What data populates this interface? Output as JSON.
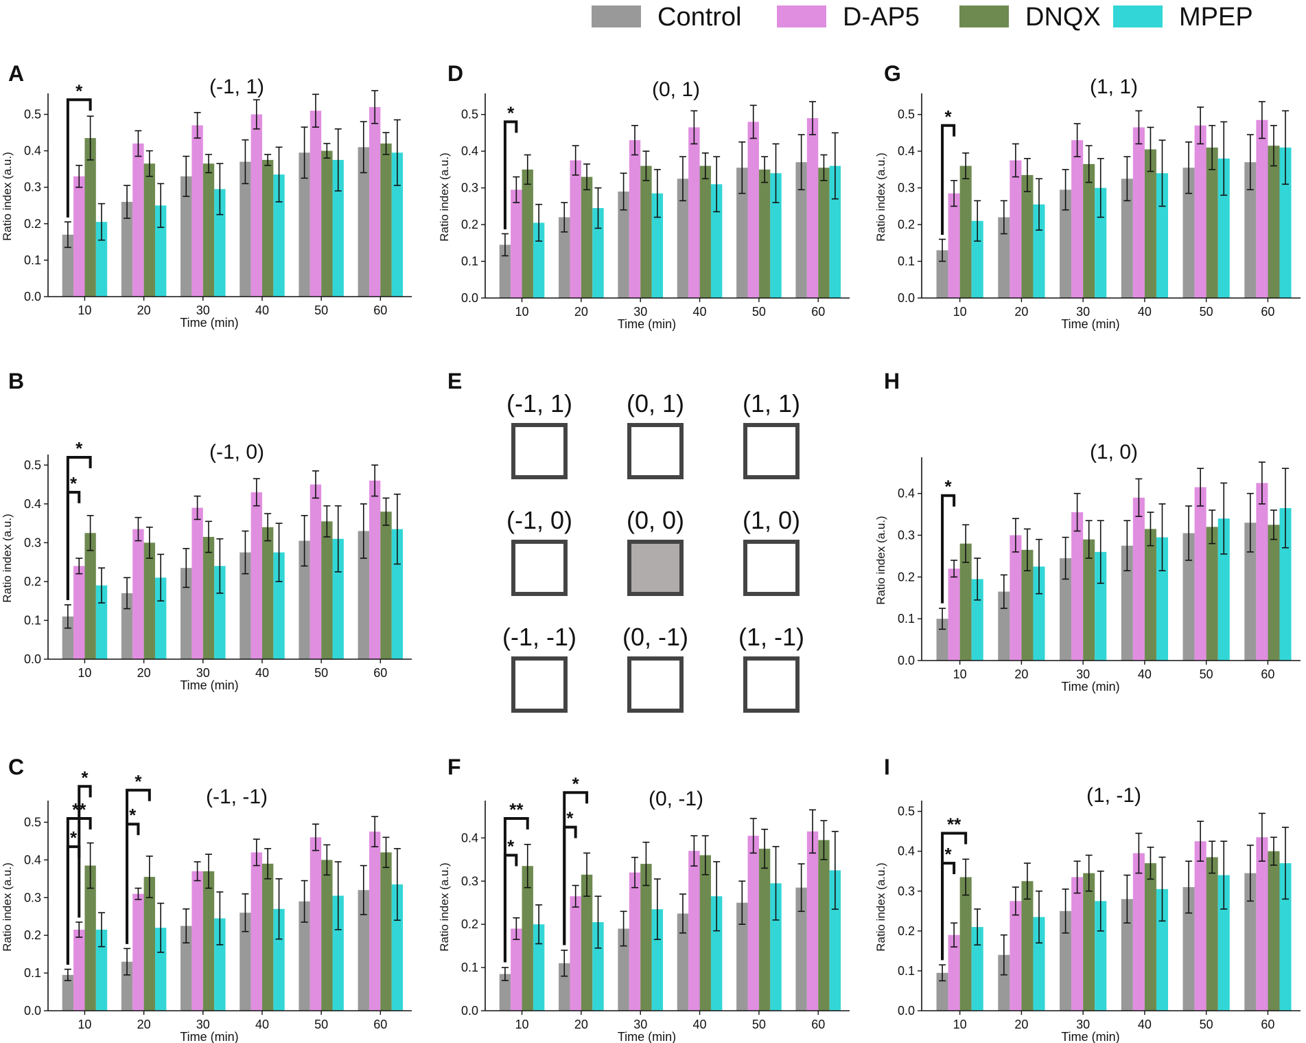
{
  "legend": [
    {
      "name": "Control",
      "color": "#999999"
    },
    {
      "name": "D-AP5",
      "color": "#e08ee0"
    },
    {
      "name": "DNQX",
      "color": "#6e8a50"
    },
    {
      "name": "MPEP",
      "color": "#33d6d6"
    }
  ],
  "grid_panel": {
    "letter": "E",
    "cells": [
      "(-1, 1)",
      "(0, 1)",
      "(1, 1)",
      "(-1, 0)",
      "(0, 0)",
      "(1, 0)",
      "(-1, -1)",
      "(0, -1)",
      "(1, -1)"
    ],
    "highlighted": "(0, 0)",
    "highlight_color": "#b0acab",
    "border_color": "#444444"
  },
  "chart_data": [
    {
      "id": "A",
      "type": "bar",
      "title": "(-1, 1)",
      "xlabel": "Time (min)",
      "ylabel": "Ratio index (a.u.)",
      "categories": [
        "10",
        "20",
        "30",
        "40",
        "50",
        "60"
      ],
      "ylim": [
        0,
        0.55
      ],
      "yticks": [
        "0.0",
        "0.1",
        "0.2",
        "0.3",
        "0.4",
        "0.5"
      ],
      "series": [
        {
          "name": "Control",
          "values": [
            0.17,
            0.26,
            0.33,
            0.37,
            0.395,
            0.41
          ],
          "err": [
            0.035,
            0.045,
            0.055,
            0.06,
            0.07,
            0.07
          ]
        },
        {
          "name": "D-AP5",
          "values": [
            0.33,
            0.42,
            0.47,
            0.5,
            0.51,
            0.52
          ],
          "err": [
            0.03,
            0.035,
            0.035,
            0.04,
            0.045,
            0.045
          ]
        },
        {
          "name": "DNQX",
          "values": [
            0.435,
            0.365,
            0.365,
            0.375,
            0.4,
            0.42
          ],
          "err": [
            0.06,
            0.035,
            0.025,
            0.015,
            0.02,
            0.03
          ]
        },
        {
          "name": "MPEP",
          "values": [
            0.205,
            0.25,
            0.295,
            0.335,
            0.375,
            0.395
          ],
          "err": [
            0.05,
            0.06,
            0.07,
            0.075,
            0.085,
            0.09
          ]
        }
      ],
      "annotations": [
        {
          "text": "*",
          "cat": 0,
          "from": 0,
          "to": 2,
          "level": 0.54
        }
      ]
    },
    {
      "id": "D",
      "type": "bar",
      "title": "(0, 1)",
      "xlabel": "Time (min)",
      "ylabel": "Ratio index (a.u.)",
      "categories": [
        "10",
        "20",
        "30",
        "40",
        "50",
        "60"
      ],
      "ylim": [
        0,
        0.55
      ],
      "yticks": [
        "0.0",
        "0.1",
        "0.2",
        "0.3",
        "0.4",
        "0.5"
      ],
      "series": [
        {
          "name": "Control",
          "values": [
            0.145,
            0.22,
            0.29,
            0.325,
            0.355,
            0.37
          ],
          "err": [
            0.03,
            0.04,
            0.05,
            0.06,
            0.07,
            0.075
          ]
        },
        {
          "name": "D-AP5",
          "values": [
            0.295,
            0.375,
            0.43,
            0.465,
            0.48,
            0.49
          ],
          "err": [
            0.035,
            0.04,
            0.04,
            0.045,
            0.045,
            0.045
          ]
        },
        {
          "name": "DNQX",
          "values": [
            0.35,
            0.33,
            0.36,
            0.36,
            0.35,
            0.355
          ],
          "err": [
            0.04,
            0.035,
            0.04,
            0.035,
            0.035,
            0.035
          ]
        },
        {
          "name": "MPEP",
          "values": [
            0.205,
            0.245,
            0.285,
            0.31,
            0.34,
            0.36
          ],
          "err": [
            0.05,
            0.055,
            0.065,
            0.075,
            0.08,
            0.09
          ]
        }
      ],
      "annotations": [
        {
          "text": "*",
          "cat": 0,
          "from": 0,
          "to": 1,
          "level": 0.48
        }
      ]
    },
    {
      "id": "G",
      "type": "bar",
      "title": "(1, 1)",
      "xlabel": "Time (min)",
      "ylabel": "Ratio index (a.u.)",
      "categories": [
        "10",
        "20",
        "30",
        "40",
        "50",
        "60"
      ],
      "ylim": [
        0,
        0.55
      ],
      "yticks": [
        "0.0",
        "0.1",
        "0.2",
        "0.3",
        "0.4",
        "0.5"
      ],
      "series": [
        {
          "name": "Control",
          "values": [
            0.13,
            0.22,
            0.295,
            0.325,
            0.355,
            0.37
          ],
          "err": [
            0.03,
            0.045,
            0.055,
            0.06,
            0.07,
            0.075
          ]
        },
        {
          "name": "D-AP5",
          "values": [
            0.285,
            0.375,
            0.43,
            0.465,
            0.47,
            0.485
          ],
          "err": [
            0.035,
            0.045,
            0.045,
            0.045,
            0.05,
            0.05
          ]
        },
        {
          "name": "DNQX",
          "values": [
            0.36,
            0.335,
            0.365,
            0.405,
            0.41,
            0.415
          ],
          "err": [
            0.035,
            0.045,
            0.05,
            0.06,
            0.06,
            0.055
          ]
        },
        {
          "name": "MPEP",
          "values": [
            0.21,
            0.255,
            0.3,
            0.34,
            0.38,
            0.41
          ],
          "err": [
            0.055,
            0.07,
            0.08,
            0.09,
            0.1,
            0.1
          ]
        }
      ],
      "annotations": [
        {
          "text": "*",
          "cat": 0,
          "from": 0,
          "to": 1,
          "level": 0.47
        }
      ]
    },
    {
      "id": "B",
      "type": "bar",
      "title": "(-1, 0)",
      "xlabel": "Time (min)",
      "ylabel": "Ratio index (a.u.)",
      "categories": [
        "10",
        "20",
        "30",
        "40",
        "50",
        "60"
      ],
      "ylim": [
        0,
        0.52
      ],
      "yticks": [
        "0.0",
        "0.1",
        "0.2",
        "0.3",
        "0.4",
        "0.5"
      ],
      "series": [
        {
          "name": "Control",
          "values": [
            0.11,
            0.17,
            0.235,
            0.275,
            0.305,
            0.33
          ],
          "err": [
            0.03,
            0.04,
            0.05,
            0.055,
            0.065,
            0.07
          ]
        },
        {
          "name": "D-AP5",
          "values": [
            0.24,
            0.335,
            0.39,
            0.43,
            0.45,
            0.46
          ],
          "err": [
            0.02,
            0.03,
            0.03,
            0.035,
            0.035,
            0.04
          ]
        },
        {
          "name": "DNQX",
          "values": [
            0.325,
            0.3,
            0.315,
            0.34,
            0.355,
            0.38
          ],
          "err": [
            0.045,
            0.04,
            0.04,
            0.035,
            0.04,
            0.035
          ]
        },
        {
          "name": "MPEP",
          "values": [
            0.19,
            0.21,
            0.24,
            0.275,
            0.31,
            0.335
          ],
          "err": [
            0.045,
            0.06,
            0.07,
            0.075,
            0.085,
            0.09
          ]
        }
      ],
      "annotations": [
        {
          "text": "*",
          "cat": 0,
          "from": 0,
          "to": 1,
          "level": 0.43
        },
        {
          "text": "*",
          "cat": 0,
          "from": 0,
          "to": 2,
          "level": 0.52
        }
      ]
    },
    {
      "id": "H",
      "type": "bar",
      "title": "(1, 0)",
      "xlabel": "Time (min)",
      "ylabel": "Ratio index (a.u.)",
      "categories": [
        "10",
        "20",
        "30",
        "40",
        "50",
        "60"
      ],
      "ylim": [
        0,
        0.48
      ],
      "yticks": [
        "0.0",
        "0.1",
        "0.2",
        "0.3",
        "0.4"
      ],
      "series": [
        {
          "name": "Control",
          "values": [
            0.1,
            0.165,
            0.245,
            0.275,
            0.305,
            0.33
          ],
          "err": [
            0.025,
            0.04,
            0.05,
            0.06,
            0.065,
            0.07
          ]
        },
        {
          "name": "D-AP5",
          "values": [
            0.22,
            0.3,
            0.355,
            0.39,
            0.415,
            0.425
          ],
          "err": [
            0.02,
            0.04,
            0.045,
            0.045,
            0.045,
            0.05
          ]
        },
        {
          "name": "DNQX",
          "values": [
            0.28,
            0.265,
            0.29,
            0.315,
            0.32,
            0.325
          ],
          "err": [
            0.045,
            0.05,
            0.045,
            0.04,
            0.04,
            0.035
          ]
        },
        {
          "name": "MPEP",
          "values": [
            0.195,
            0.225,
            0.26,
            0.295,
            0.34,
            0.365
          ],
          "err": [
            0.05,
            0.065,
            0.075,
            0.08,
            0.085,
            0.095
          ]
        }
      ],
      "annotations": [
        {
          "text": "*",
          "cat": 0,
          "from": 0,
          "to": 1,
          "level": 0.395
        }
      ]
    },
    {
      "id": "C",
      "type": "bar",
      "title": "(-1, -1)",
      "xlabel": "Time (min)",
      "ylabel": "Ratio index (a.u.)",
      "categories": [
        "10",
        "20",
        "30",
        "40",
        "50",
        "60"
      ],
      "ylim": [
        0,
        0.55
      ],
      "yticks": [
        "0.0",
        "0.1",
        "0.2",
        "0.3",
        "0.4",
        "0.5"
      ],
      "series": [
        {
          "name": "Control",
          "values": [
            0.095,
            0.13,
            0.225,
            0.26,
            0.29,
            0.32
          ],
          "err": [
            0.015,
            0.035,
            0.045,
            0.05,
            0.055,
            0.065
          ]
        },
        {
          "name": "D-AP5",
          "values": [
            0.215,
            0.31,
            0.37,
            0.42,
            0.46,
            0.475
          ],
          "err": [
            0.02,
            0.015,
            0.025,
            0.035,
            0.035,
            0.04
          ]
        },
        {
          "name": "DNQX",
          "values": [
            0.385,
            0.355,
            0.37,
            0.39,
            0.4,
            0.42
          ],
          "err": [
            0.06,
            0.055,
            0.045,
            0.04,
            0.04,
            0.04
          ]
        },
        {
          "name": "MPEP",
          "values": [
            0.215,
            0.22,
            0.245,
            0.27,
            0.305,
            0.335
          ],
          "err": [
            0.045,
            0.065,
            0.07,
            0.08,
            0.09,
            0.095
          ]
        }
      ],
      "annotations": [
        {
          "text": "*",
          "cat": 0,
          "from": 0,
          "to": 1,
          "level": 0.435
        },
        {
          "text": "**",
          "cat": 0,
          "from": 0,
          "to": 2,
          "level": 0.51
        },
        {
          "text": "*",
          "cat": 0,
          "from": 1,
          "to": 2,
          "level": 0.595
        },
        {
          "text": "*",
          "cat": 1,
          "from": 0,
          "to": 1,
          "level": 0.495
        },
        {
          "text": "*",
          "cat": 1,
          "from": 0,
          "to": 2,
          "level": 0.585
        }
      ]
    },
    {
      "id": "F",
      "type": "bar",
      "title": "(0, -1)",
      "xlabel": "Time (min)",
      "ylabel": "Ratio index (a.u.)",
      "categories": [
        "10",
        "20",
        "30",
        "40",
        "50",
        "60"
      ],
      "ylim": [
        0,
        0.48
      ],
      "yticks": [
        "0.0",
        "0.1",
        "0.2",
        "0.3",
        "0.4"
      ],
      "series": [
        {
          "name": "Control",
          "values": [
            0.085,
            0.11,
            0.19,
            0.225,
            0.25,
            0.285
          ],
          "err": [
            0.015,
            0.03,
            0.04,
            0.045,
            0.05,
            0.055
          ]
        },
        {
          "name": "D-AP5",
          "values": [
            0.19,
            0.265,
            0.32,
            0.37,
            0.405,
            0.415
          ],
          "err": [
            0.025,
            0.025,
            0.035,
            0.035,
            0.04,
            0.05
          ]
        },
        {
          "name": "DNQX",
          "values": [
            0.335,
            0.315,
            0.34,
            0.36,
            0.375,
            0.395
          ],
          "err": [
            0.05,
            0.05,
            0.05,
            0.045,
            0.045,
            0.045
          ]
        },
        {
          "name": "MPEP",
          "values": [
            0.2,
            0.205,
            0.235,
            0.265,
            0.295,
            0.325
          ],
          "err": [
            0.045,
            0.06,
            0.07,
            0.08,
            0.085,
            0.09
          ]
        }
      ],
      "annotations": [
        {
          "text": "*",
          "cat": 0,
          "from": 0,
          "to": 1,
          "level": 0.36
        },
        {
          "text": "**",
          "cat": 0,
          "from": 0,
          "to": 2,
          "level": 0.445
        },
        {
          "text": "*",
          "cat": 1,
          "from": 0,
          "to": 1,
          "level": 0.425
        },
        {
          "text": "*",
          "cat": 1,
          "from": 0,
          "to": 2,
          "level": 0.505
        }
      ]
    },
    {
      "id": "I",
      "type": "bar",
      "title": "(1, -1)",
      "xlabel": "Time (min)",
      "ylabel": "Ratio index (a.u.)",
      "categories": [
        "10",
        "20",
        "30",
        "40",
        "50",
        "60"
      ],
      "ylim": [
        0,
        0.52
      ],
      "yticks": [
        "0.0",
        "0.1",
        "0.2",
        "0.3",
        "0.4",
        "0.5"
      ],
      "series": [
        {
          "name": "Control",
          "values": [
            0.095,
            0.14,
            0.25,
            0.28,
            0.31,
            0.345
          ],
          "err": [
            0.02,
            0.05,
            0.055,
            0.06,
            0.065,
            0.07
          ]
        },
        {
          "name": "D-AP5",
          "values": [
            0.19,
            0.275,
            0.335,
            0.395,
            0.425,
            0.435
          ],
          "err": [
            0.03,
            0.035,
            0.04,
            0.05,
            0.05,
            0.06
          ]
        },
        {
          "name": "DNQX",
          "values": [
            0.335,
            0.325,
            0.345,
            0.37,
            0.385,
            0.4
          ],
          "err": [
            0.045,
            0.045,
            0.045,
            0.04,
            0.04,
            0.035
          ]
        },
        {
          "name": "MPEP",
          "values": [
            0.21,
            0.235,
            0.275,
            0.305,
            0.34,
            0.37
          ],
          "err": [
            0.045,
            0.065,
            0.075,
            0.08,
            0.085,
            0.09
          ]
        }
      ],
      "annotations": [
        {
          "text": "*",
          "cat": 0,
          "from": 0,
          "to": 1,
          "level": 0.37
        },
        {
          "text": "**",
          "cat": 0,
          "from": 0,
          "to": 2,
          "level": 0.445
        }
      ]
    }
  ]
}
